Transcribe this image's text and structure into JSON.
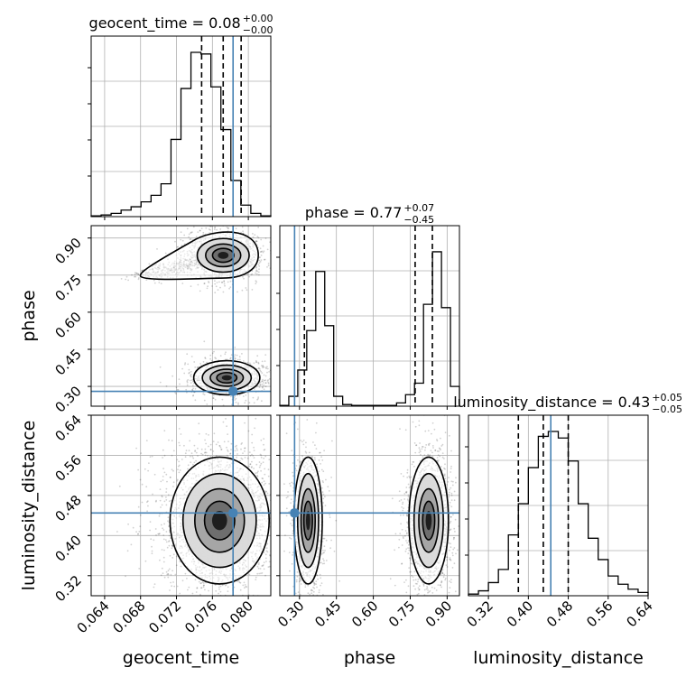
{
  "chart_data": {
    "type": "corner",
    "parameters": [
      {
        "name": "geocent_time",
        "label": "geocent_time",
        "title": "geocent_time = 0.08",
        "title_sup": "+0.00",
        "title_sub": "−0.00",
        "median": 0.0772,
        "q_low": 0.0748,
        "q_high": 0.0792,
        "truth": 0.0783,
        "range": [
          0.0625,
          0.0825
        ],
        "ticks": [
          0.064,
          0.068,
          0.072,
          0.076,
          0.08
        ],
        "tick_labels": [
          "0.064",
          "0.068",
          "0.072",
          "0.076",
          "0.080"
        ],
        "hist": [
          0.005,
          0.01,
          0.02,
          0.04,
          0.06,
          0.09,
          0.13,
          0.2,
          0.47,
          0.78,
          1.0,
          0.99,
          0.79,
          0.53,
          0.22,
          0.07,
          0.02,
          0.005
        ]
      },
      {
        "name": "phase",
        "label": "phase",
        "title": "phase = 0.77",
        "title_sup": "+0.07",
        "title_sub": "−0.45",
        "median": 0.77,
        "q_low": 0.32,
        "q_high": 0.84,
        "truth": 0.28,
        "range": [
          0.22,
          0.95
        ],
        "ticks": [
          0.3,
          0.45,
          0.6,
          0.75,
          0.9
        ],
        "tick_labels": [
          "0.30",
          "0.45",
          "0.60",
          "0.75",
          "0.90"
        ],
        "hist": [
          0.005,
          0.06,
          0.22,
          0.46,
          0.82,
          0.49,
          0.06,
          0.01,
          0.005,
          0.005,
          0.005,
          0.005,
          0.005,
          0.02,
          0.07,
          0.14,
          0.62,
          0.94,
          0.6,
          0.12
        ]
      },
      {
        "name": "luminosity_distance",
        "label": "luminosity_distance",
        "title": "luminosity_distance = 0.43",
        "title_sup": "+0.05",
        "title_sub": "−0.05",
        "median": 0.43,
        "q_low": 0.38,
        "q_high": 0.48,
        "truth": 0.445,
        "range": [
          0.28,
          0.64
        ],
        "ticks": [
          0.32,
          0.4,
          0.48,
          0.56,
          0.64
        ],
        "tick_labels": [
          "0.32",
          "0.40",
          "0.48",
          "0.56",
          "0.64"
        ],
        "hist": [
          0.01,
          0.03,
          0.08,
          0.16,
          0.37,
          0.56,
          0.78,
          0.97,
          1.0,
          0.96,
          0.82,
          0.56,
          0.35,
          0.22,
          0.12,
          0.07,
          0.04,
          0.02
        ]
      }
    ],
    "modes_2d": {
      "geocent_time_phase": [
        {
          "cx": 0.0772,
          "cy": 0.83,
          "sx": 0.0017,
          "sy": 0.04,
          "weight": 0.62,
          "tail": {
            "x": 0.068,
            "y": 0.745
          }
        },
        {
          "cx": 0.0776,
          "cy": 0.335,
          "sx": 0.0016,
          "sy": 0.03,
          "weight": 0.38
        }
      ],
      "geocent_time_luminosity_distance": [
        {
          "cx": 0.0768,
          "cy": 0.43,
          "sx": 0.0024,
          "sy": 0.055,
          "weight": 1.0
        }
      ],
      "phase_luminosity_distance": [
        {
          "cx": 0.335,
          "cy": 0.43,
          "sx": 0.025,
          "sy": 0.055,
          "weight": 0.4
        },
        {
          "cx": 0.825,
          "cy": 0.43,
          "sx": 0.035,
          "sy": 0.055,
          "weight": 0.6
        }
      ]
    },
    "grid": true,
    "truth_color": "#4682b4",
    "line_color": "#000000"
  }
}
